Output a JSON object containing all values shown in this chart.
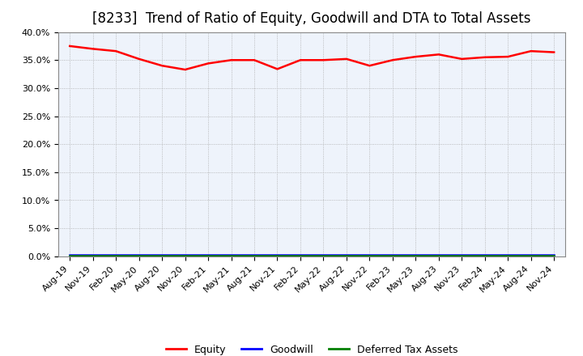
{
  "title": "[8233]  Trend of Ratio of Equity, Goodwill and DTA to Total Assets",
  "x_labels": [
    "Aug-19",
    "Nov-19",
    "Feb-20",
    "May-20",
    "Aug-20",
    "Nov-20",
    "Feb-21",
    "May-21",
    "Aug-21",
    "Nov-21",
    "Feb-22",
    "May-22",
    "Aug-22",
    "Nov-22",
    "Feb-23",
    "May-23",
    "Aug-23",
    "Nov-23",
    "Feb-24",
    "May-24",
    "Aug-24",
    "Nov-24"
  ],
  "equity": [
    0.375,
    0.37,
    0.366,
    0.352,
    0.34,
    0.333,
    0.344,
    0.35,
    0.35,
    0.334,
    0.35,
    0.35,
    0.352,
    0.34,
    0.35,
    0.356,
    0.36,
    0.352,
    0.355,
    0.356,
    0.366,
    0.364
  ],
  "goodwill": [
    0.002,
    0.002,
    0.002,
    0.002,
    0.002,
    0.002,
    0.002,
    0.002,
    0.002,
    0.002,
    0.002,
    0.002,
    0.002,
    0.002,
    0.002,
    0.002,
    0.002,
    0.002,
    0.002,
    0.002,
    0.002,
    0.002
  ],
  "dta": [
    0.001,
    0.001,
    0.001,
    0.001,
    0.001,
    0.001,
    0.001,
    0.001,
    0.001,
    0.001,
    0.001,
    0.001,
    0.001,
    0.001,
    0.001,
    0.001,
    0.001,
    0.001,
    0.001,
    0.001,
    0.001,
    0.001
  ],
  "equity_color": "#ff0000",
  "goodwill_color": "#0000ff",
  "dta_color": "#008000",
  "ylim": [
    0.0,
    0.4
  ],
  "yticks": [
    0.0,
    0.05,
    0.1,
    0.15,
    0.2,
    0.25,
    0.3,
    0.35,
    0.4
  ],
  "background_color": "#ffffff",
  "plot_bg_color": "#eef3fb",
  "grid_color": "#aaaaaa",
  "title_fontsize": 12,
  "tick_fontsize": 8,
  "legend_labels": [
    "Equity",
    "Goodwill",
    "Deferred Tax Assets"
  ],
  "legend_colors": [
    "#ff0000",
    "#0000ff",
    "#008000"
  ]
}
